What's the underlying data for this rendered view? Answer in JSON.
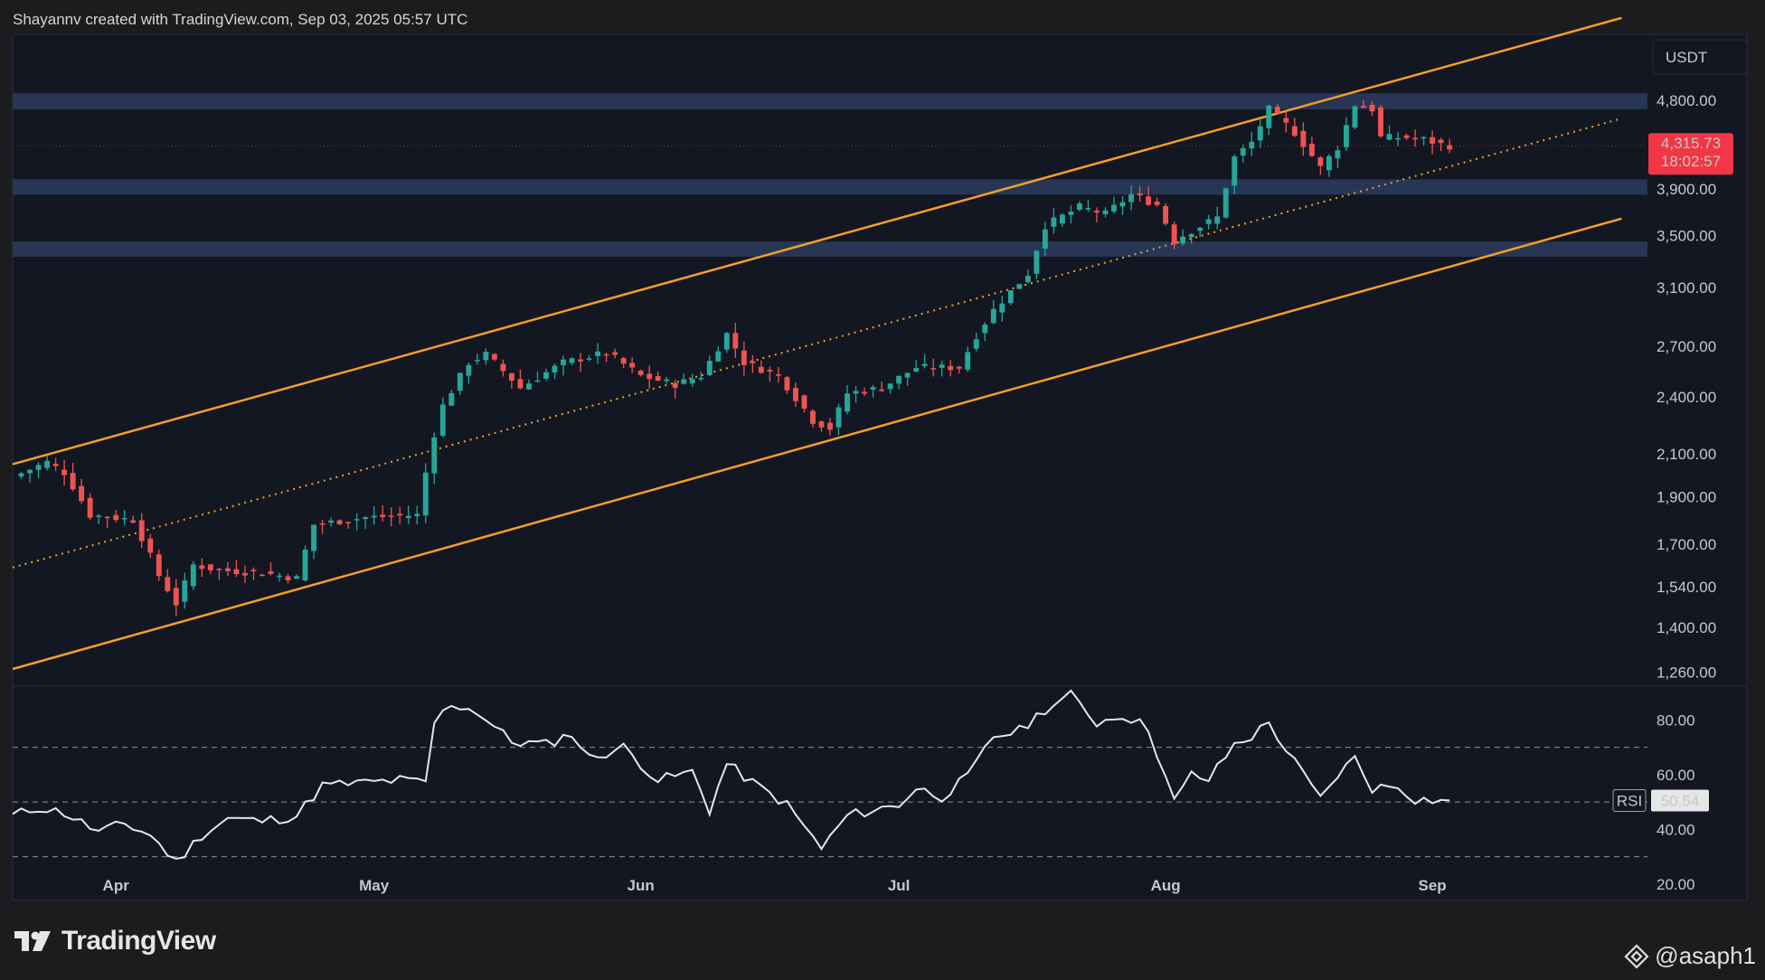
{
  "header": {
    "credit": "Shayannv created with TradingView.com, Sep 03, 2025 05:57 UTC"
  },
  "footer": {
    "brand": "TradingView",
    "watermark": "@asaph1"
  },
  "colors": {
    "background": "#131722",
    "up": "#26a69a",
    "down": "#ef5350",
    "channel": "#f59e2a",
    "zone": "#2a3a5a",
    "rsi_line": "#e6e6e6",
    "price_badge": "#f23645"
  },
  "icons": {
    "brand_logo": "tradingview-logo-icon",
    "watermark": "binance-diamond-icon"
  },
  "chart_data": [
    {
      "type": "candlestick",
      "symbol_currency": "USDT",
      "y_scale": "log",
      "y_ticks": [
        1260,
        1400,
        1540,
        1700,
        1900,
        2100,
        2400,
        2700,
        3100,
        3500,
        3900,
        4800
      ],
      "y_tick_labels": [
        "1,260.00",
        "1,400.00",
        "1,540.00",
        "1,700.00",
        "1,900.00",
        "2,100.00",
        "2,400.00",
        "2,700.00",
        "3,100.00",
        "3,500.00",
        "3,900.00",
        "4,800.00"
      ],
      "ylim": [
        1220,
        5600
      ],
      "x_range": [
        "2025-03-20",
        "2025-09-26"
      ],
      "x_ticks": [
        {
          "date": "2025-04-01",
          "label": "Apr"
        },
        {
          "date": "2025-05-01",
          "label": "May"
        },
        {
          "date": "2025-06-01",
          "label": "Jun"
        },
        {
          "date": "2025-07-01",
          "label": "Jul"
        },
        {
          "date": "2025-08-01",
          "label": "Aug"
        },
        {
          "date": "2025-09-01",
          "label": "Sep"
        }
      ],
      "last_price": {
        "value": 4315.73,
        "label": "4,315.73",
        "countdown": "18:02:57"
      },
      "price_anchors": [
        [
          "2025-03-20",
          1990
        ],
        [
          "2025-03-24",
          2060
        ],
        [
          "2025-03-26",
          2010
        ],
        [
          "2025-03-29",
          1820
        ],
        [
          "2025-04-03",
          1800
        ],
        [
          "2025-04-06",
          1580
        ],
        [
          "2025-04-08",
          1480
        ],
        [
          "2025-04-10",
          1620
        ],
        [
          "2025-04-13",
          1600
        ],
        [
          "2025-04-18",
          1590
        ],
        [
          "2025-04-22",
          1570
        ],
        [
          "2025-04-24",
          1780
        ],
        [
          "2025-04-30",
          1810
        ],
        [
          "2025-05-06",
          1820
        ],
        [
          "2025-05-08",
          2200
        ],
        [
          "2025-05-09",
          2350
        ],
        [
          "2025-05-12",
          2600
        ],
        [
          "2025-05-14",
          2650
        ],
        [
          "2025-05-18",
          2450
        ],
        [
          "2025-05-23",
          2600
        ],
        [
          "2025-05-28",
          2660
        ],
        [
          "2025-06-01",
          2520
        ],
        [
          "2025-06-05",
          2470
        ],
        [
          "2025-06-08",
          2520
        ],
        [
          "2025-06-11",
          2780
        ],
        [
          "2025-06-13",
          2600
        ],
        [
          "2025-06-17",
          2520
        ],
        [
          "2025-06-21",
          2270
        ],
        [
          "2025-06-23",
          2230
        ],
        [
          "2025-06-25",
          2420
        ],
        [
          "2025-06-29",
          2450
        ],
        [
          "2025-07-03",
          2570
        ],
        [
          "2025-07-08",
          2570
        ],
        [
          "2025-07-10",
          2770
        ],
        [
          "2025-07-12",
          2940
        ],
        [
          "2025-07-16",
          3200
        ],
        [
          "2025-07-18",
          3580
        ],
        [
          "2025-07-22",
          3740
        ],
        [
          "2025-07-25",
          3680
        ],
        [
          "2025-07-28",
          3850
        ],
        [
          "2025-07-31",
          3760
        ],
        [
          "2025-08-02",
          3450
        ],
        [
          "2025-08-03",
          3500
        ],
        [
          "2025-08-07",
          3650
        ],
        [
          "2025-08-09",
          4200
        ],
        [
          "2025-08-11",
          4350
        ],
        [
          "2025-08-13",
          4700
        ],
        [
          "2025-08-16",
          4450
        ],
        [
          "2025-08-19",
          4100
        ],
        [
          "2025-08-21",
          4300
        ],
        [
          "2025-08-23",
          4750
        ],
        [
          "2025-08-25",
          4700
        ],
        [
          "2025-08-26",
          4400
        ],
        [
          "2025-08-29",
          4400
        ],
        [
          "2025-08-31",
          4380
        ],
        [
          "2025-09-02",
          4330
        ],
        [
          "2025-09-03",
          4315.73
        ]
      ],
      "channel": {
        "upper": [
          [
            "2025-03-20",
            2050
          ],
          [
            "2025-09-23",
            5820
          ]
        ],
        "lower": [
          [
            "2025-03-20",
            1270
          ],
          [
            "2025-09-23",
            3640
          ]
        ],
        "mid": [
          [
            "2025-03-20",
            1610
          ],
          [
            "2025-09-23",
            4600
          ]
        ]
      },
      "zones": [
        {
          "low": 4700,
          "high": 4880
        },
        {
          "low": 3850,
          "high": 3990
        },
        {
          "low": 3330,
          "high": 3450
        }
      ]
    },
    {
      "type": "line",
      "series": [
        {
          "name": "RSI",
          "last_value": 50.54
        }
      ],
      "y_ticks": [
        20,
        40,
        60,
        80
      ],
      "y_tick_labels": [
        "20.00",
        "40.00",
        "60.00",
        "80.00"
      ],
      "ylim": [
        14,
        92
      ],
      "reference_lines": [
        30,
        50,
        70
      ],
      "value_label": "50.54",
      "rsi_anchors": [
        [
          "2025-03-20",
          45
        ],
        [
          "2025-03-23",
          48
        ],
        [
          "2025-03-26",
          46
        ],
        [
          "2025-03-30",
          39
        ],
        [
          "2025-04-02",
          42
        ],
        [
          "2025-04-05",
          38
        ],
        [
          "2025-04-08",
          28
        ],
        [
          "2025-04-11",
          38
        ],
        [
          "2025-04-14",
          44
        ],
        [
          "2025-04-18",
          43
        ],
        [
          "2025-04-22",
          45
        ],
        [
          "2025-04-25",
          56
        ],
        [
          "2025-04-30",
          57
        ],
        [
          "2025-05-04",
          58
        ],
        [
          "2025-05-07",
          57
        ],
        [
          "2025-05-08",
          79
        ],
        [
          "2025-05-10",
          86
        ],
        [
          "2025-05-13",
          83
        ],
        [
          "2025-05-17",
          72
        ],
        [
          "2025-05-21",
          71
        ],
        [
          "2025-05-24",
          75
        ],
        [
          "2025-05-26",
          66
        ],
        [
          "2025-05-30",
          70
        ],
        [
          "2025-06-03",
          58
        ],
        [
          "2025-06-07",
          61
        ],
        [
          "2025-06-09",
          47
        ],
        [
          "2025-06-11",
          64
        ],
        [
          "2025-06-14",
          57
        ],
        [
          "2025-06-18",
          49
        ],
        [
          "2025-06-22",
          33
        ],
        [
          "2025-06-25",
          45
        ],
        [
          "2025-06-28",
          47
        ],
        [
          "2025-07-01",
          49
        ],
        [
          "2025-07-03",
          55
        ],
        [
          "2025-07-06",
          52
        ],
        [
          "2025-07-09",
          59
        ],
        [
          "2025-07-12",
          74
        ],
        [
          "2025-07-15",
          76
        ],
        [
          "2025-07-18",
          84
        ],
        [
          "2025-07-21",
          89
        ],
        [
          "2025-07-24",
          79
        ],
        [
          "2025-07-27",
          82
        ],
        [
          "2025-07-30",
          77
        ],
        [
          "2025-08-02",
          50
        ],
        [
          "2025-08-04",
          60
        ],
        [
          "2025-08-06",
          58
        ],
        [
          "2025-08-09",
          71
        ],
        [
          "2025-08-11",
          74
        ],
        [
          "2025-08-13",
          79
        ],
        [
          "2025-08-15",
          69
        ],
        [
          "2025-08-19",
          51
        ],
        [
          "2025-08-21",
          60
        ],
        [
          "2025-08-23",
          66
        ],
        [
          "2025-08-25",
          55
        ],
        [
          "2025-08-28",
          56
        ],
        [
          "2025-08-30",
          51
        ],
        [
          "2025-09-03",
          50.54
        ]
      ]
    }
  ]
}
